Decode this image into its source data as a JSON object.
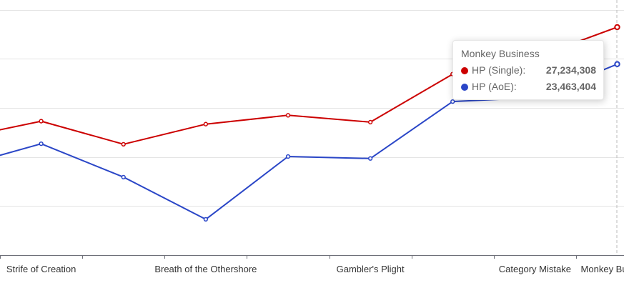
{
  "chart_data": {
    "type": "line",
    "categories": [
      "",
      "Strife of Creation",
      "",
      "Breath of the Othershore",
      "",
      "Gambler's Plight",
      "",
      "Category Mistake",
      "Monkey Business"
    ],
    "series": [
      {
        "name": "HP (Single)",
        "color": "#cc0000",
        "values": [
          15900000,
          17650000,
          15300000,
          17350000,
          18250000,
          17550000,
          22450000,
          24150000,
          27234308
        ]
      },
      {
        "name": "HP (AoE)",
        "color": "#2a46c7",
        "values": [
          13000000,
          15350000,
          11950000,
          7650000,
          14050000,
          13850000,
          19650000,
          20050000,
          23463404
        ]
      }
    ],
    "ylim": [
      4000000,
      30000000
    ],
    "grid": true,
    "tooltip": {
      "title": "Monkey Business",
      "rows": [
        {
          "name": "HP (Single):",
          "value": "27,234,308",
          "color": "#cc0000"
        },
        {
          "name": "HP (AoE):",
          "value": "23,463,404",
          "color": "#2a46c7"
        }
      ]
    }
  }
}
